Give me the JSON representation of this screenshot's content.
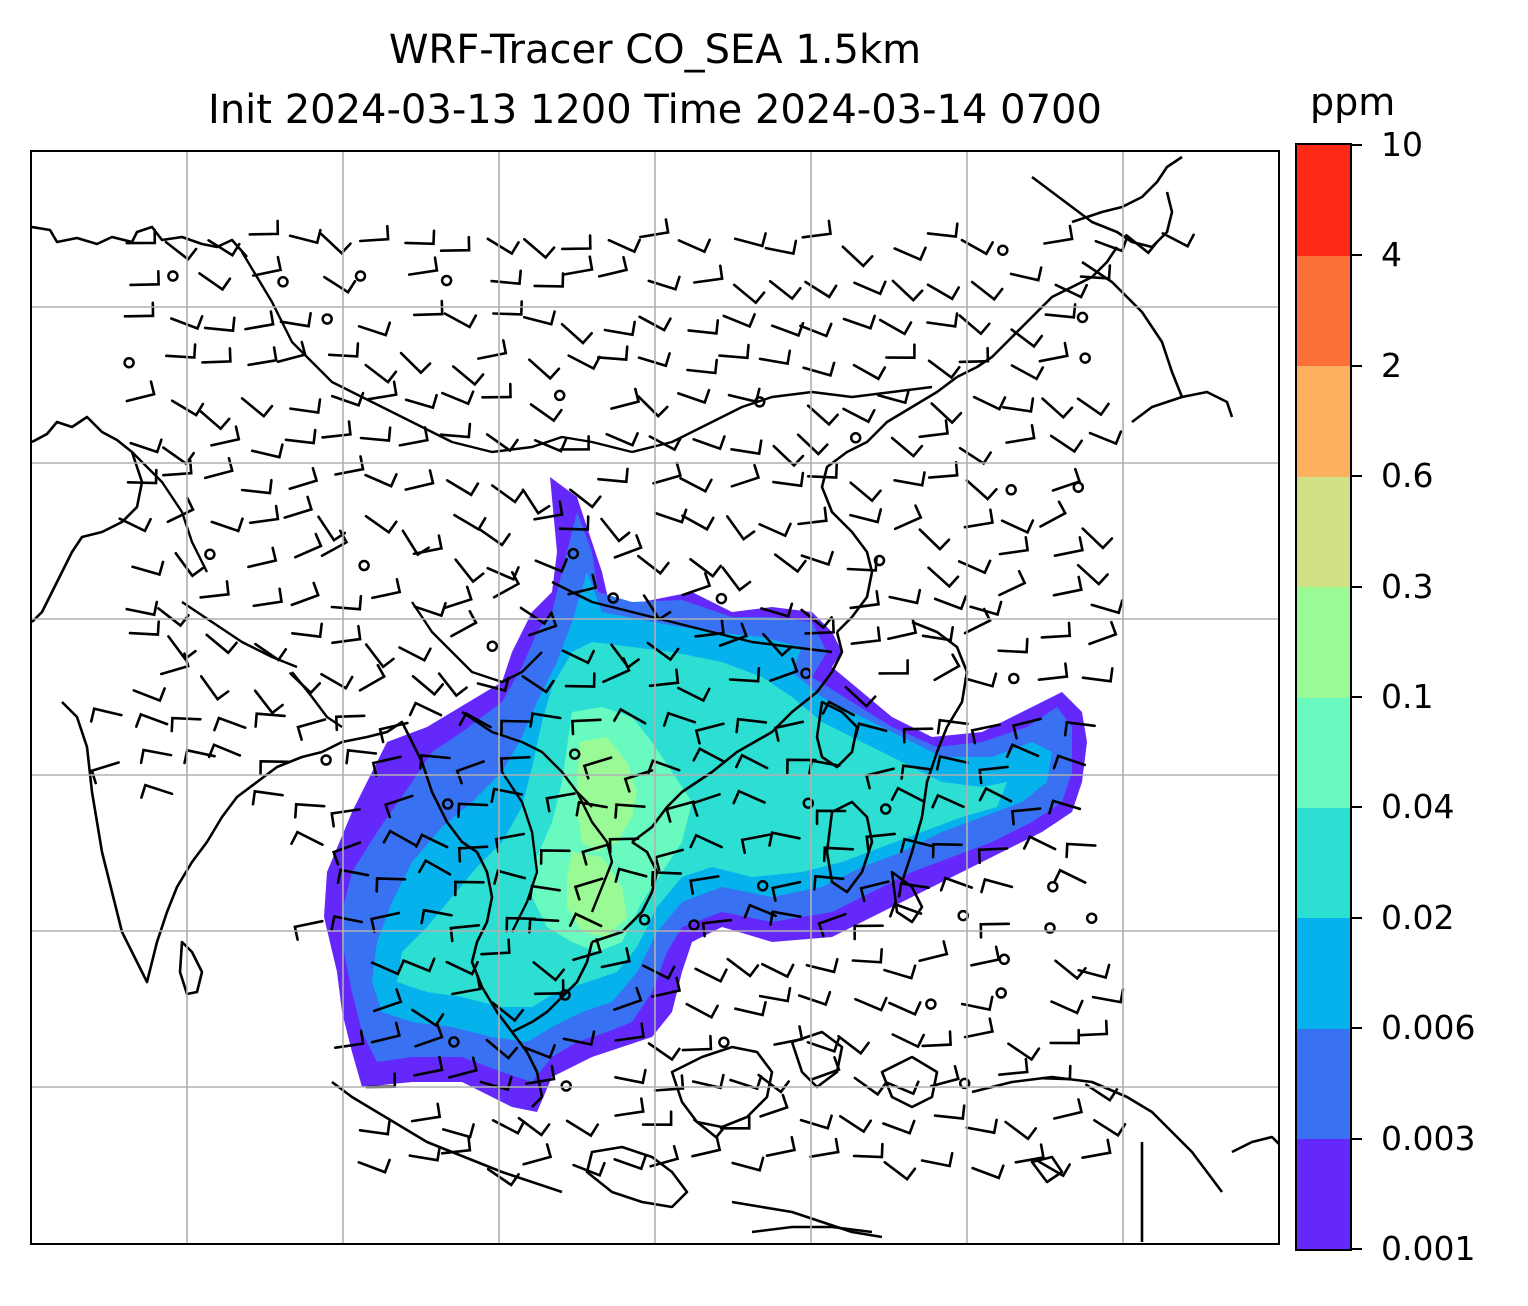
{
  "title": {
    "line1": "WRF-Tracer CO_SEA 1.5km",
    "line2": "Init 2024-03-13 1200 Time 2024-03-14 0700"
  },
  "colorbar": {
    "unit": "ppm",
    "levels": [
      "0.001",
      "0.003",
      "0.006",
      "0.02",
      "0.04",
      "0.1",
      "0.3",
      "0.6",
      "2",
      "4",
      "10"
    ],
    "colors": [
      "#6429fa",
      "#3872f3",
      "#06b2ec",
      "#2ddfd2",
      "#69fac0",
      "#9afa96",
      "#cfe184",
      "#feb061",
      "#fe7039",
      "#ff2a16"
    ]
  },
  "map": {
    "style": {
      "coastline": "#000000",
      "gridline": "#b0b0b0",
      "barb": "#000000"
    },
    "gridlines_shown": true,
    "features": [
      "coastlines",
      "country-borders",
      "wind-barbs",
      "calm-wind-circles",
      "co-tracer-shading"
    ]
  }
}
